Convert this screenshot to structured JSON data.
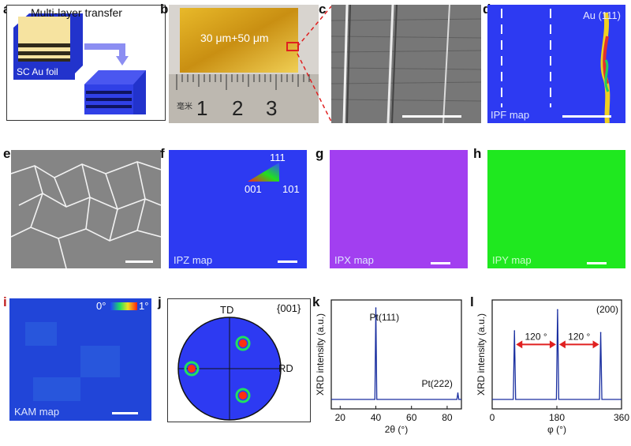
{
  "panel_labels": [
    "a",
    "b",
    "c",
    "d",
    "e",
    "f",
    "g",
    "h",
    "i",
    "j",
    "k",
    "l"
  ],
  "a": {
    "title": "Multi-layer transfer",
    "foil_label": "SC Au foil"
  },
  "b": {
    "text": "30 μm+50 μm",
    "ruler_numbers": [
      "1",
      "2",
      "3"
    ],
    "ruler_mark": "毫米"
  },
  "d": {
    "label": "Au (111)",
    "map": "IPF map"
  },
  "f": {
    "map": "IPZ map",
    "triangle": {
      "top": "111",
      "left": "001",
      "right": "101"
    }
  },
  "g": {
    "map": "IPX map"
  },
  "h": {
    "map": "IPY map"
  },
  "i": {
    "map": "KAM map",
    "scale_min": "0°",
    "scale_max": "1°"
  },
  "j": {
    "family": "{001}",
    "td": "TD",
    "rd": "RD"
  },
  "colors": {
    "ipz": "#2d3af2",
    "ipx": "#a23ff0",
    "ipy": "#1fe81f",
    "kam": "#2145d8",
    "axis": "#1a2fa0"
  },
  "chart_data": [
    {
      "type": "line",
      "panel": "k",
      "xlabel": "2θ (°)",
      "ylabel": "XRD intensity (a.u.)",
      "xlim": [
        15,
        88
      ],
      "xticks": [
        "20",
        "40",
        "60",
        "80"
      ],
      "peaks": [
        {
          "x": 40,
          "label": "Pt(111)",
          "height": 1.0
        },
        {
          "x": 86,
          "label": "Pt(222)",
          "height": 0.07
        }
      ],
      "baseline": 0.0
    },
    {
      "type": "line",
      "panel": "l",
      "xlabel": "φ (°)",
      "ylabel": "XRD intensity (a.u.)",
      "xlim": [
        0,
        360
      ],
      "xticks": [
        "0",
        "180",
        "360"
      ],
      "title": "(200)",
      "peaks": [
        {
          "x": 62,
          "height": 0.75
        },
        {
          "x": 182,
          "height": 0.98
        },
        {
          "x": 302,
          "height": 0.73
        }
      ],
      "annotations": [
        "120 °",
        "120 °"
      ]
    }
  ]
}
